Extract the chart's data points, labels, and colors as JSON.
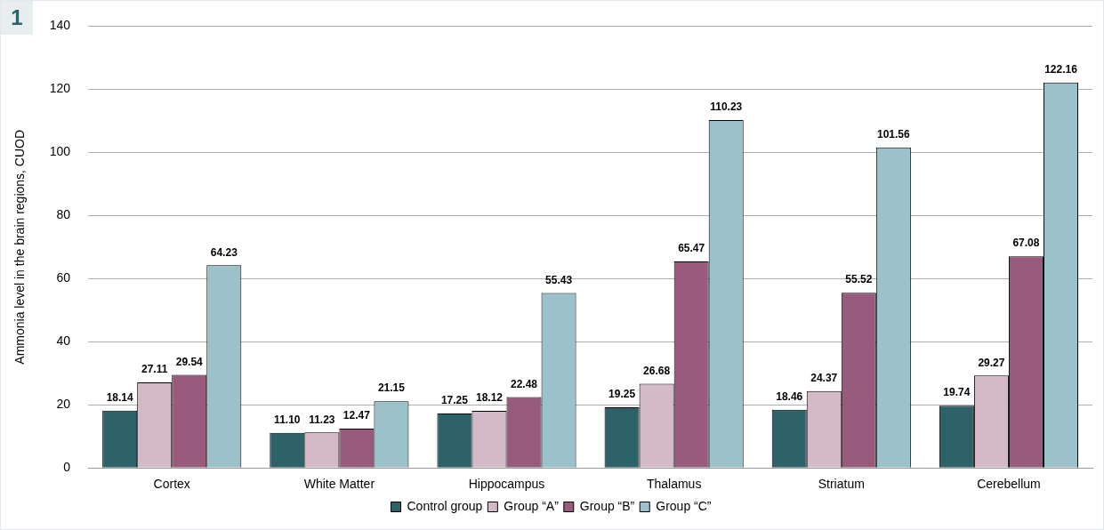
{
  "chart_data": {
    "type": "bar",
    "ylabel": "Ammonia level in the brain regions, CUOD",
    "annotations": [
      "1"
    ],
    "categories": [
      "Cortex",
      "White Matter",
      "Hippocampus",
      "Thalamus",
      "Striatum",
      "Cerebellum"
    ],
    "series": [
      {
        "name": "Control group",
        "color": "#2e6269",
        "values": [
          18.14,
          11.1,
          17.25,
          19.25,
          18.46,
          19.74
        ],
        "value_labels": [
          "18.14",
          "11.10",
          "17.25",
          "19.25",
          "18.46",
          "19.74"
        ]
      },
      {
        "name": "Group “A”",
        "color": "#d4b9c7",
        "values": [
          27.11,
          11.23,
          18.12,
          26.68,
          24.37,
          29.27
        ],
        "value_labels": [
          "27.11",
          "11.23",
          "18.12",
          "26.68",
          "24.37",
          "29.27"
        ]
      },
      {
        "name": "Group “B”",
        "color": "#985b7e",
        "values": [
          29.54,
          12.47,
          22.48,
          65.47,
          55.52,
          67.08
        ],
        "value_labels": [
          "29.54",
          "12.47",
          "22.48",
          "65.47",
          "55.52",
          "67.08"
        ]
      },
      {
        "name": "Group “C”",
        "color": "#9bc2ca",
        "values": [
          64.23,
          21.15,
          55.43,
          110.23,
          101.56,
          122.16
        ],
        "value_labels": [
          "64.23",
          "21.15",
          "55.43",
          "110.23",
          "101.56",
          "122.16"
        ]
      }
    ],
    "ylim": [
      0,
      140
    ],
    "yticks": [
      0,
      20,
      40,
      60,
      80,
      100,
      120,
      140
    ],
    "grid": "y",
    "legend": "bottom"
  }
}
